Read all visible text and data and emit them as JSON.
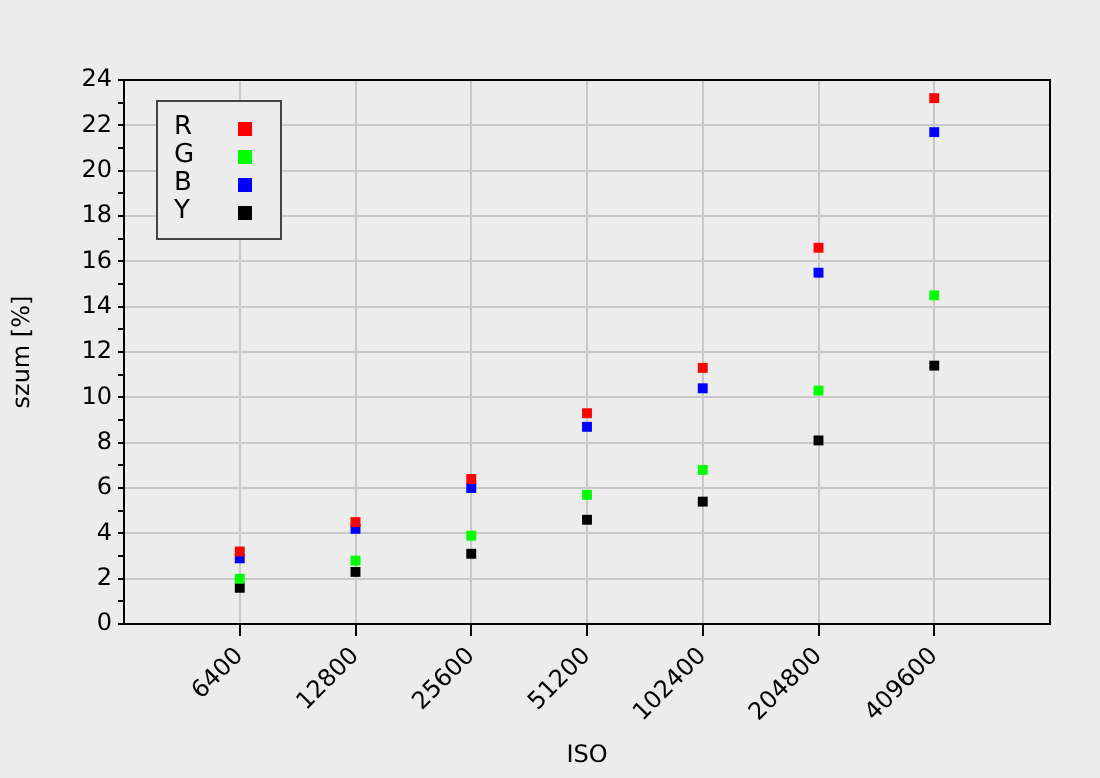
{
  "chart_data": {
    "type": "scatter",
    "xlabel": "ISO",
    "ylabel": "szum [%]",
    "categories": [
      "6400",
      "12800",
      "25600",
      "51200",
      "102400",
      "204800",
      "409600"
    ],
    "series": [
      {
        "name": "R",
        "color": "#ff0000",
        "values": [
          3.2,
          4.5,
          6.4,
          9.3,
          11.3,
          16.6,
          23.2
        ]
      },
      {
        "name": "G",
        "color": "#00ff00",
        "values": [
          2.0,
          2.8,
          3.9,
          5.7,
          6.8,
          10.3,
          14.5
        ]
      },
      {
        "name": "B",
        "color": "#0000ff",
        "values": [
          2.9,
          4.2,
          6.0,
          8.7,
          10.4,
          15.5,
          21.7
        ]
      },
      {
        "name": "Y",
        "color": "#000000",
        "values": [
          1.6,
          2.3,
          3.1,
          4.6,
          5.4,
          8.1,
          11.4
        ]
      }
    ],
    "ylim": [
      0,
      24
    ],
    "yticks": [
      0,
      {
        "value": 1,
        "label": null
      },
      2,
      {
        "value": 3,
        "label": null
      },
      4,
      {
        "value": 5,
        "label": null
      },
      6,
      {
        "value": 7,
        "label": null
      },
      8,
      {
        "value": 9,
        "label": null
      },
      10,
      {
        "value": 11,
        "label": null
      },
      12,
      {
        "value": 13,
        "label": null
      },
      14,
      {
        "value": 15,
        "label": null
      },
      16,
      {
        "value": 17,
        "label": null
      },
      18,
      {
        "value": 19,
        "label": null
      },
      20,
      {
        "value": 21,
        "label": null
      },
      22,
      {
        "value": 23,
        "label": null
      },
      24
    ],
    "grid": true,
    "legend": "top left",
    "marker": "square"
  }
}
